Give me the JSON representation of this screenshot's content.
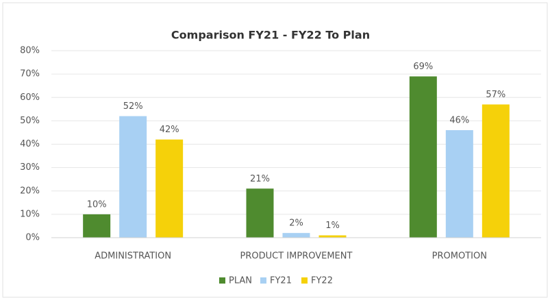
{
  "chart_data": {
    "type": "bar",
    "title": "Comparison FY21 - FY22 To Plan",
    "categories": [
      "ADMINISTRATION",
      "PRODUCT IMPROVEMENT",
      "PROMOTION"
    ],
    "series": [
      {
        "name": "PLAN",
        "color": "#4f8b2f",
        "values": [
          10,
          21,
          69
        ],
        "value_labels": [
          "10%",
          "21%",
          "69%"
        ]
      },
      {
        "name": "FY21",
        "color": "#a8d0f3",
        "values": [
          52,
          2,
          46
        ],
        "value_labels": [
          "52%",
          "2%",
          "46%"
        ]
      },
      {
        "name": "FY22",
        "color": "#f5d10a",
        "values": [
          42,
          1,
          57
        ],
        "value_labels": [
          "42%",
          "1%",
          "57%"
        ]
      }
    ],
    "ylim": [
      0,
      80
    ],
    "yticks": [
      {
        "value": 0,
        "label": "0%"
      },
      {
        "value": 10,
        "label": "10%"
      },
      {
        "value": 20,
        "label": "20%"
      },
      {
        "value": 30,
        "label": "30%"
      },
      {
        "value": 40,
        "label": "40%"
      },
      {
        "value": 50,
        "label": "50%"
      },
      {
        "value": 60,
        "label": "60%"
      },
      {
        "value": 70,
        "label": "70%"
      },
      {
        "value": 80,
        "label": "80%"
      }
    ],
    "grid": true,
    "legend": "bottom"
  }
}
